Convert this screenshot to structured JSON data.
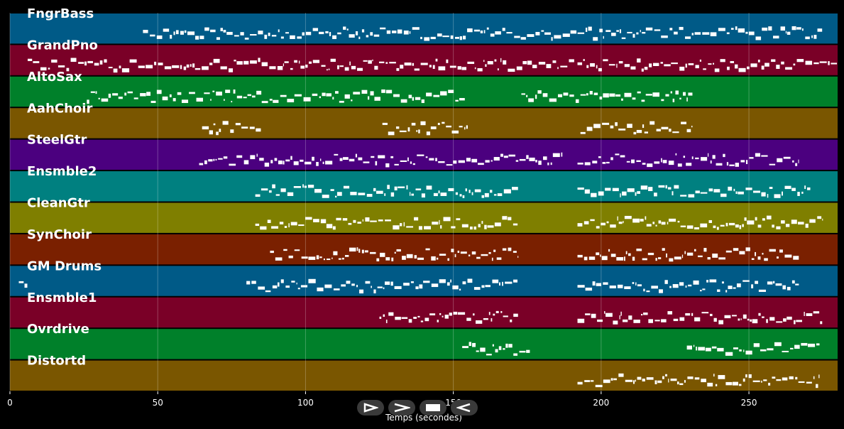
{
  "chart_data": {
    "type": "piano-roll",
    "xlabel": "Temps (secondes)",
    "xlim": [
      0,
      280
    ],
    "xticks": [
      0,
      50,
      100,
      150,
      200,
      250
    ],
    "grid": true,
    "tracks": [
      {
        "name": "FngrBass",
        "color": "#005a87",
        "segments": [
          [
            45,
            275
          ]
        ]
      },
      {
        "name": "GrandPno",
        "color": "#7a0027",
        "segments": [
          [
            6,
            191
          ],
          [
            192,
            280
          ]
        ]
      },
      {
        "name": "AltoSax",
        "color": "#00802a",
        "segments": [
          [
            26,
            154
          ],
          [
            173,
            231
          ]
        ]
      },
      {
        "name": "AahChoir",
        "color": "#7a5600",
        "segments": [
          [
            65,
            85
          ],
          [
            126,
            155
          ],
          [
            193,
            231
          ]
        ]
      },
      {
        "name": "SteelGtr",
        "color": "#4b007f",
        "segments": [
          [
            64,
            187
          ],
          [
            192,
            267
          ]
        ]
      },
      {
        "name": "Ensmble2",
        "color": "#008080",
        "segments": [
          [
            83,
            172
          ],
          [
            192,
            271
          ]
        ]
      },
      {
        "name": "CleanGtr",
        "color": "#7f7f00",
        "segments": [
          [
            83,
            172
          ],
          [
            192,
            275
          ]
        ]
      },
      {
        "name": "SynChoir",
        "color": "#7a2000",
        "segments": [
          [
            88,
            172
          ],
          [
            192,
            267
          ]
        ]
      },
      {
        "name": "GM Drums",
        "color": "#005a87",
        "segments": [
          [
            3,
            6
          ],
          [
            80,
            172
          ],
          [
            192,
            267
          ]
        ]
      },
      {
        "name": "Ensmble1",
        "color": "#7a0027",
        "segments": [
          [
            125,
            172
          ],
          [
            192,
            275
          ]
        ]
      },
      {
        "name": "Ovrdrive",
        "color": "#00802a",
        "segments": [
          [
            153,
            176
          ],
          [
            229,
            274
          ]
        ]
      },
      {
        "name": "Distortd",
        "color": "#7a5600",
        "segments": [
          [
            192,
            274
          ]
        ]
      }
    ]
  },
  "controls": [
    {
      "name": "play-forward-button",
      "icon": "play-icon"
    },
    {
      "name": "next-button",
      "icon": "chevron-right-icon"
    },
    {
      "name": "stop-button",
      "icon": "stop-icon"
    },
    {
      "name": "play-reverse-button",
      "icon": "play-reverse-icon"
    }
  ]
}
